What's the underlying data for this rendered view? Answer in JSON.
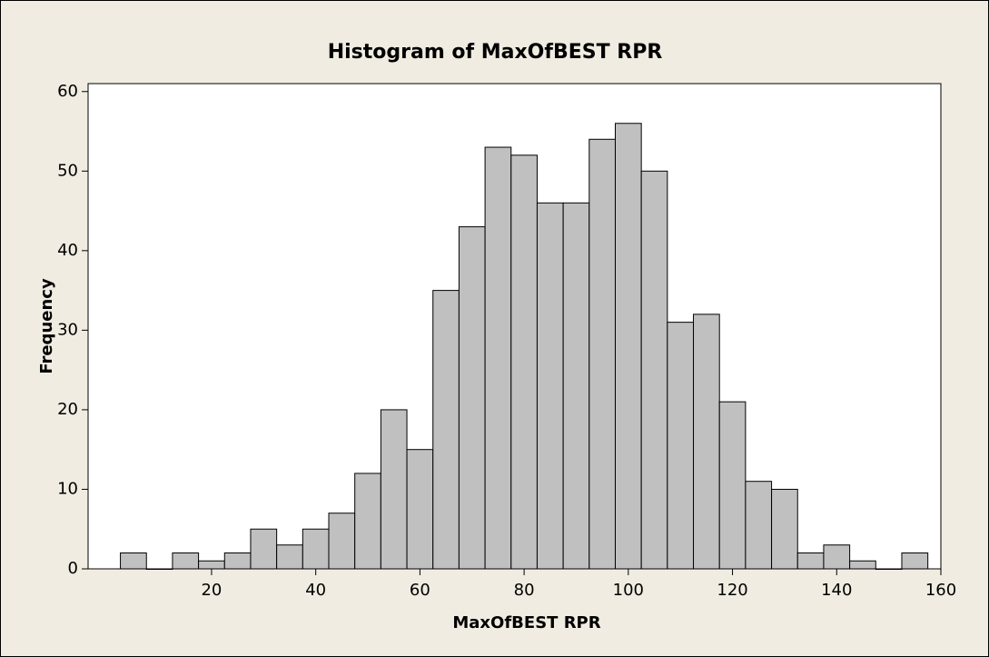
{
  "chart_data": {
    "type": "histogram",
    "title": "Histogram of MaxOfBEST RPR",
    "x_label": "MaxOfBEST RPR",
    "y_label": "Frequency",
    "bins": [
      2.5,
      7.5,
      12.5,
      17.5,
      22.5,
      27.5,
      32.5,
      37.5,
      42.5,
      47.5,
      52.5,
      57.5,
      62.5,
      67.5,
      72.5,
      77.5,
      82.5,
      87.5,
      92.5,
      97.5,
      102.5,
      107.5,
      112.5,
      117.5,
      122.5,
      127.5,
      132.5,
      137.5,
      142.5,
      147.5,
      152.5,
      157.5
    ],
    "values": [
      2,
      0,
      2,
      1,
      2,
      5,
      3,
      5,
      7,
      12,
      20,
      15,
      35,
      43,
      53,
      52,
      46,
      46,
      54,
      56,
      50,
      31,
      32,
      21,
      11,
      10,
      2,
      3,
      1,
      0,
      2
    ],
    "color": "#c0c0c0",
    "xlim": [
      -3.7,
      160
    ],
    "xticks": [
      20,
      40,
      60,
      80,
      100,
      120,
      140,
      160
    ],
    "ylim": [
      0,
      61
    ],
    "yticks": [
      0,
      10,
      20,
      30,
      40,
      50,
      60
    ]
  }
}
